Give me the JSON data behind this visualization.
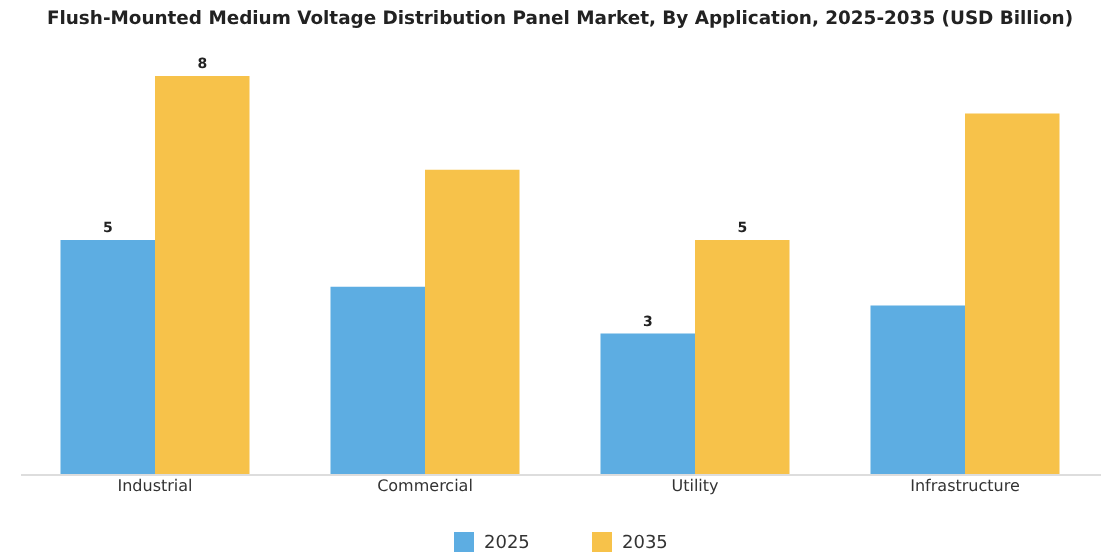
{
  "chart_data": {
    "type": "bar",
    "title": "Flush-Mounted Medium Voltage Distribution Panel Market, By Application, 2025-2035 (USD Billion)",
    "categories": [
      "Industrial",
      "Commercial",
      "Utility",
      "Infrastructure"
    ],
    "series": [
      {
        "name": "2025",
        "color": "#5dade2",
        "values": [
          5,
          4.0,
          3,
          3.6
        ],
        "value_labels": [
          "5",
          null,
          "3",
          null
        ]
      },
      {
        "name": "2035",
        "color": "#f7c24a",
        "values": [
          8.5,
          6.5,
          5,
          7.7
        ],
        "value_labels": [
          "8",
          null,
          "5",
          null
        ]
      }
    ],
    "legend": "bottom",
    "grid": false
  }
}
